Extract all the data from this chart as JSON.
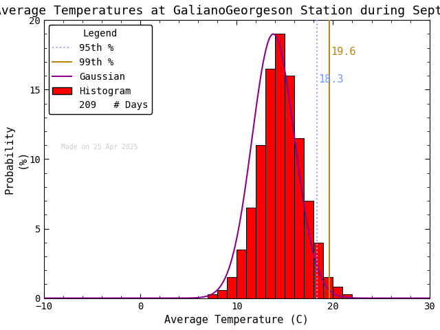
{
  "title": "Average Temperatures at GalianoGeorgeson Station during September",
  "xlabel": "Average Temperature (C)",
  "ylabel": "Probability\n(%)",
  "xlim": [
    -10,
    30
  ],
  "ylim": [
    0,
    20
  ],
  "xticks": [
    -10,
    0,
    10,
    20,
    30
  ],
  "yticks": [
    0,
    5,
    10,
    15,
    20
  ],
  "hist_bins": [
    7.0,
    8.0,
    9.0,
    10.0,
    11.0,
    12.0,
    13.0,
    14.0,
    15.0,
    16.0,
    17.0,
    18.0,
    19.0,
    20.0,
    21.0
  ],
  "hist_vals": [
    0.3,
    0.6,
    1.5,
    3.5,
    6.5,
    11.0,
    16.5,
    19.0,
    16.0,
    11.5,
    7.0,
    4.0,
    1.5,
    0.8,
    0.3
  ],
  "mean": 13.8,
  "std": 2.2,
  "pct_95": 18.3,
  "pct_99": 19.6,
  "n_days": 209,
  "bar_color": "#ff0000",
  "bar_edge_color": "#000000",
  "gaussian_color": "#8b008b",
  "pct95_color": "#a0a0ff",
  "pct99_color": "#b8860b",
  "pct95_label_color": "#6699ff",
  "pct99_label_color": "#b8860b",
  "watermark": "Made on 25 Apr 2025",
  "watermark_color": "#cccccc",
  "title_fontsize": 13,
  "axis_fontsize": 11,
  "legend_fontsize": 10,
  "background_color": "#ffffff"
}
